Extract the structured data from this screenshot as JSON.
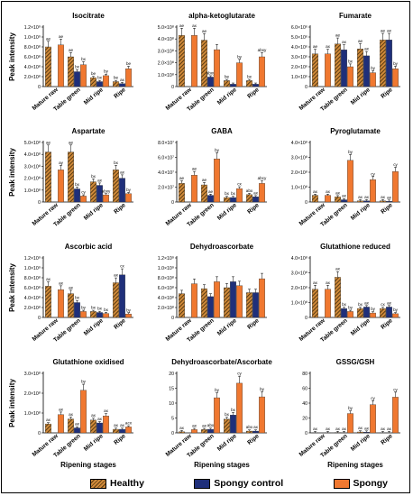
{
  "colors": {
    "healthy": "#d08a3a",
    "healthy_stripe": "#5a3a10",
    "spongy_control": "#1f2f7a",
    "spongy": "#f07830"
  },
  "legend": [
    {
      "name": "Healthy",
      "color_key": "healthy"
    },
    {
      "name": "Spongy control",
      "color_key": "spongy_control"
    },
    {
      "name": "Spongy",
      "color_key": "spongy"
    }
  ],
  "chart_data": [
    {
      "type": "bar",
      "title": "Isocitrate",
      "ylabel": "Peak intensity",
      "xlabel": "",
      "categories": [
        "Mature raw",
        "Table green",
        "Mid ripe",
        "Ripe"
      ],
      "ylim": [
        0,
        1.2
      ],
      "yticks": [
        "0",
        "2.0×10⁸",
        "4.0×10⁸",
        "6.0×10⁸",
        "8.0×10⁸",
        "1.0×10⁹",
        "1.2×10⁹"
      ],
      "series": [
        {
          "name": "Healthy",
          "values": [
            0.8,
            0.6,
            0.18,
            0.1
          ]
        },
        {
          "name": "Spongy control",
          "values": [
            0.0,
            0.3,
            0.1,
            0.06
          ]
        },
        {
          "name": "Spongy",
          "values": [
            0.84,
            0.44,
            0.22,
            0.36
          ]
        }
      ],
      "annotations": [
        [
          "ae",
          "",
          "ae"
        ],
        [
          "ae",
          "bx",
          "bx"
        ],
        [
          "be",
          "bx",
          "by"
        ],
        [
          "be",
          "ax",
          "be"
        ]
      ]
    },
    {
      "type": "bar",
      "title": "alpha-ketoglutarate",
      "ylabel": "",
      "xlabel": "",
      "categories": [
        "Mature raw",
        "Table green",
        "Mid ripe",
        "Ripe"
      ],
      "ylim": [
        0,
        5
      ],
      "yticks": [
        "0",
        "1.0×10⁸",
        "2.0×10⁸",
        "3.0×10⁸",
        "4.0×10⁸",
        "5.0×10⁸"
      ],
      "series": [
        {
          "name": "Healthy",
          "values": [
            4.3,
            3.9,
            0.5,
            0.5
          ]
        },
        {
          "name": "Spongy control",
          "values": [
            0.0,
            0.8,
            0.2,
            0.2
          ]
        },
        {
          "name": "Spongy",
          "values": [
            4.3,
            3.1,
            2.0,
            2.5
          ]
        }
      ],
      "annotations": [
        [
          "ae",
          "",
          "ax"
        ],
        [
          "ae",
          "abxy",
          ""
        ],
        [
          "be",
          "",
          "by"
        ],
        [
          "bx",
          "",
          "abxy"
        ]
      ]
    },
    {
      "type": "bar",
      "title": "Fumarate",
      "ylabel": "",
      "xlabel": "",
      "categories": [
        "Mature raw",
        "Table green",
        "Mid ripe",
        "Ripe"
      ],
      "ylim": [
        0,
        6
      ],
      "yticks": [
        "0",
        "1.0×10⁶",
        "2.0×10⁶",
        "3.0×10⁶",
        "4.0×10⁶",
        "5.0×10⁶",
        "6.0×10⁶"
      ],
      "series": [
        {
          "name": "Healthy",
          "values": [
            3.3,
            4.3,
            3.8,
            4.7
          ]
        },
        {
          "name": "Spongy control",
          "values": [
            0.0,
            3.7,
            3.1,
            4.7
          ]
        },
        {
          "name": "Spongy",
          "values": [
            3.3,
            2.0,
            1.4,
            1.8
          ]
        }
      ],
      "annotations": [
        [
          "ae",
          "",
          "ax"
        ],
        [
          "ae",
          "ax",
          "bx"
        ],
        [
          "ae",
          "ax",
          "by"
        ],
        [
          "ae",
          "ax",
          "by"
        ]
      ]
    },
    {
      "type": "bar",
      "title": "Aspartate",
      "ylabel": "Peak intensity",
      "xlabel": "",
      "categories": [
        "Mature raw",
        "Table green",
        "Mid ripe",
        "Ripe"
      ],
      "ylim": [
        0,
        5
      ],
      "yticks": [
        "0",
        "1.0×10⁸",
        "2.0×10⁸",
        "3.0×10⁸",
        "4.0×10⁸",
        "5.0×10⁸"
      ],
      "series": [
        {
          "name": "Healthy",
          "values": [
            4.2,
            4.2,
            1.7,
            2.7
          ]
        },
        {
          "name": "Spongy control",
          "values": [
            0.0,
            1.1,
            1.4,
            2.0
          ]
        },
        {
          "name": "Spongy",
          "values": [
            2.7,
            0.5,
            0.6,
            0.7
          ]
        }
      ],
      "annotations": [
        [
          "ae",
          "",
          "ay"
        ],
        [
          "ae",
          "bx",
          "cy"
        ],
        [
          "bx",
          "ax",
          "abxy"
        ],
        [
          "bx",
          "ax",
          "by"
        ]
      ]
    },
    {
      "type": "bar",
      "title": "GABA",
      "ylabel": "",
      "xlabel": "",
      "categories": [
        "Mature raw",
        "Table green",
        "Mid ripe",
        "Ripe"
      ],
      "ylim": [
        0,
        8
      ],
      "yticks": [
        "0",
        "2.0×10⁷",
        "4.0×10⁷",
        "6.0×10⁷",
        "8.0×10⁷"
      ],
      "series": [
        {
          "name": "Healthy",
          "values": [
            2.5,
            2.3,
            0.6,
            1.0
          ]
        },
        {
          "name": "Spongy control",
          "values": [
            0.0,
            0.9,
            0.6,
            0.7
          ]
        },
        {
          "name": "Spongy",
          "values": [
            3.6,
            5.8,
            1.8,
            2.5
          ]
        }
      ],
      "annotations": [
        [
          "ae",
          "",
          "ae"
        ],
        [
          "ae",
          "ae",
          "by"
        ],
        [
          "bx",
          "bx",
          "cx"
        ],
        [
          "abx",
          "ax",
          "abcy"
        ]
      ]
    },
    {
      "type": "bar",
      "title": "Pyroglutamate",
      "ylabel": "",
      "xlabel": "",
      "categories": [
        "Mature raw",
        "Table green",
        "Mid ripe",
        "Ripe"
      ],
      "ylim": [
        0,
        4
      ],
      "yticks": [
        "0",
        "1.0×10⁸",
        "2.0×10⁸",
        "3.0×10⁸",
        "4.0×10⁸"
      ],
      "series": [
        {
          "name": "Healthy",
          "values": [
            0.45,
            0.35,
            0.08,
            0.08
          ]
        },
        {
          "name": "Spongy control",
          "values": [
            0.0,
            0.15,
            0.08,
            0.05
          ]
        },
        {
          "name": "Spongy",
          "values": [
            0.45,
            2.8,
            1.5,
            2.05
          ]
        }
      ],
      "annotations": [
        [
          "ax",
          "",
          "ax"
        ],
        [
          "ax",
          "ax",
          "by"
        ],
        [
          "ax",
          "ax",
          "cy"
        ],
        [
          "ax",
          "ax",
          "cy"
        ]
      ]
    },
    {
      "type": "bar",
      "title": "Ascorbic acid",
      "ylabel": "Peak intensity",
      "xlabel": "",
      "categories": [
        "Mature raw",
        "Table green",
        "Mid ripe",
        "Ripe"
      ],
      "ylim": [
        0,
        1.2
      ],
      "yticks": [
        "0",
        "2.0×10⁸",
        "4.0×10⁸",
        "6.0×10⁸",
        "8.0×10⁸",
        "1.0×10⁹",
        "1.2×10⁹"
      ],
      "series": [
        {
          "name": "Healthy",
          "values": [
            0.63,
            0.48,
            0.12,
            0.7
          ]
        },
        {
          "name": "Spongy control",
          "values": [
            0.0,
            0.3,
            0.1,
            0.86
          ]
        },
        {
          "name": "Spongy",
          "values": [
            0.56,
            0.12,
            0.08,
            0.07
          ]
        }
      ],
      "annotations": [
        [
          "ax",
          "",
          "ax"
        ],
        [
          "ax",
          "bx",
          "by"
        ],
        [
          "bx",
          "bx",
          "bx"
        ],
        [
          "ax",
          "cx",
          "by"
        ]
      ]
    },
    {
      "type": "bar",
      "title": "Dehydroascorbate",
      "ylabel": "",
      "xlabel": "",
      "categories": [
        "Mature raw",
        "Table green",
        "Mid ripe",
        "Ripe"
      ],
      "ylim": [
        0,
        1.2
      ],
      "yticks": [
        "0",
        "2.0×10⁸",
        "4.0×10⁸",
        "6.0×10⁸",
        "8.0×10⁸",
        "1.0×10⁹",
        "1.2×10⁹"
      ],
      "series": [
        {
          "name": "Healthy",
          "values": [
            0.48,
            0.58,
            0.6,
            0.5
          ]
        },
        {
          "name": "Spongy control",
          "values": [
            0.0,
            0.42,
            0.72,
            0.5
          ]
        },
        {
          "name": "Spongy",
          "values": [
            0.68,
            0.72,
            0.64,
            0.78
          ]
        }
      ],
      "annotations": []
    },
    {
      "type": "bar",
      "title": "Glutathione reduced",
      "ylabel": "",
      "xlabel": "",
      "categories": [
        "Mature raw",
        "Table green",
        "Mid ripe",
        "Ripe"
      ],
      "ylim": [
        0,
        4
      ],
      "yticks": [
        "0",
        "1.0×10⁸",
        "2.0×10⁸",
        "3.0×10⁸",
        "4.0×10⁸"
      ],
      "series": [
        {
          "name": "Healthy",
          "values": [
            1.9,
            2.7,
            0.6,
            0.6
          ]
        },
        {
          "name": "Spongy control",
          "values": [
            0.0,
            0.6,
            0.7,
            0.7
          ]
        },
        {
          "name": "Spongy",
          "values": [
            1.9,
            0.4,
            0.3,
            0.25
          ]
        }
      ],
      "annotations": [
        [
          "ax",
          "",
          "ax"
        ],
        [
          "ax",
          "bx",
          "by"
        ],
        [
          "bx",
          "ax",
          "by"
        ],
        [
          "cx",
          "ax",
          "by"
        ]
      ]
    },
    {
      "type": "bar",
      "title": "Glutathione oxidised",
      "ylabel": "Peak intensity",
      "xlabel": "Ripening stages",
      "categories": [
        "Mature raw",
        "Table green",
        "Mid ripe",
        "Ripe"
      ],
      "ylim": [
        0,
        3
      ],
      "yticks": [
        "0",
        "1.0×10⁸",
        "2.0×10⁸",
        "3.0×10⁸"
      ],
      "series": [
        {
          "name": "Healthy",
          "values": [
            0.45,
            0.7,
            0.65,
            0.18
          ]
        },
        {
          "name": "Spongy control",
          "values": [
            0.0,
            0.25,
            0.5,
            0.18
          ]
        },
        {
          "name": "Spongy",
          "values": [
            0.92,
            2.15,
            0.85,
            0.3
          ]
        }
      ],
      "annotations": [
        [
          "ax",
          "",
          "ax"
        ],
        [
          "ax",
          "ax",
          "by"
        ],
        [
          "ax",
          "ax",
          "ax"
        ],
        [
          "ax",
          "ax",
          "acx"
        ]
      ]
    },
    {
      "type": "bar",
      "title": "Dehydroascorbate/Ascorbate",
      "ylabel": "",
      "xlabel": "Ripening stages",
      "categories": [
        "Mature raw",
        "Table green",
        "Mid ripe",
        "Ripe"
      ],
      "ylim": [
        0,
        20
      ],
      "yticks": [
        "0",
        "5",
        "10",
        "15",
        "20"
      ],
      "series": [
        {
          "name": "Healthy",
          "values": [
            0.4,
            1.1,
            4.6,
            0.6
          ]
        },
        {
          "name": "Spongy control",
          "values": [
            0.0,
            1.2,
            6.0,
            0.6
          ]
        },
        {
          "name": "Spongy",
          "values": [
            1.1,
            11.8,
            16.7,
            12.1
          ]
        }
      ],
      "annotations": [
        [
          "ax",
          "",
          "ax"
        ],
        [
          "ax",
          "abx",
          "by"
        ],
        [
          "bx",
          "bx",
          "cy"
        ],
        [
          "abx",
          "ax",
          "by"
        ]
      ]
    },
    {
      "type": "bar",
      "title": "GSSG/GSH",
      "ylabel": "",
      "xlabel": "Ripening stages",
      "categories": [
        "Mature raw",
        "Table green",
        "Mid ripe",
        "Ripe"
      ],
      "ylim": [
        0,
        80
      ],
      "yticks": [
        "0",
        "20",
        "40",
        "60",
        "80"
      ],
      "series": [
        {
          "name": "Healthy",
          "values": [
            0.3,
            0.5,
            1.2,
            0.3
          ]
        },
        {
          "name": "Spongy control",
          "values": [
            0.0,
            0.4,
            1.0,
            0.3
          ]
        },
        {
          "name": "Spongy",
          "values": [
            0.3,
            26.0,
            38.0,
            48.0
          ]
        }
      ],
      "annotations": [
        [
          "ax",
          "",
          "ax"
        ],
        [
          "ax",
          "ax",
          "by"
        ],
        [
          "ax",
          "ax",
          "cy"
        ],
        [
          "ax",
          "ax",
          "cy"
        ]
      ]
    }
  ]
}
